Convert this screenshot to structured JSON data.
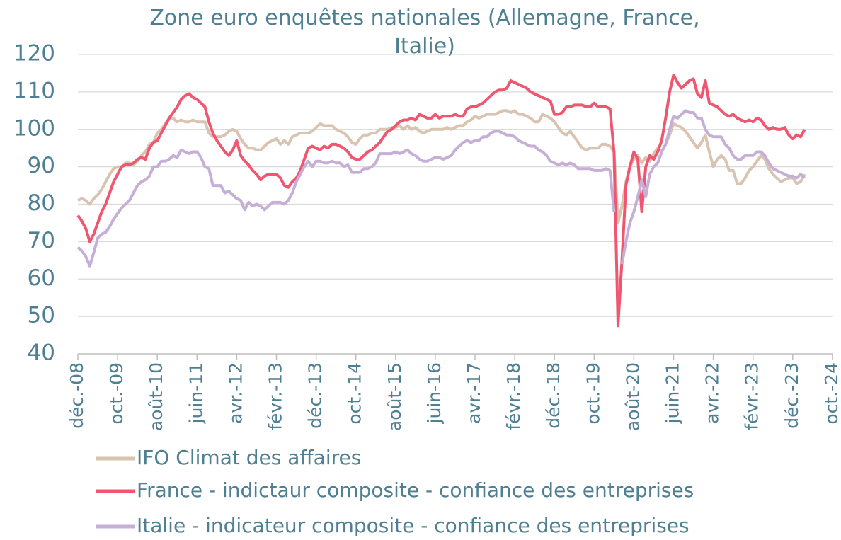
{
  "chart_data": {
    "type": "line",
    "title": "Zone euro enquêtes nationales (Allemagne, France, Italie)",
    "categories": [
      "déc.-08",
      null,
      null,
      null,
      null,
      null,
      null,
      null,
      null,
      null,
      "oct.-09",
      null,
      null,
      null,
      null,
      null,
      null,
      null,
      null,
      null,
      "août-10",
      null,
      null,
      null,
      null,
      null,
      null,
      null,
      null,
      null,
      "juin-11",
      null,
      null,
      null,
      null,
      null,
      null,
      null,
      null,
      null,
      "avr.-12",
      null,
      null,
      null,
      null,
      null,
      null,
      null,
      null,
      null,
      "févr.-13",
      null,
      null,
      null,
      null,
      null,
      null,
      null,
      null,
      null,
      "déc.-13",
      null,
      null,
      null,
      null,
      null,
      null,
      null,
      null,
      null,
      "oct.-14",
      null,
      null,
      null,
      null,
      null,
      null,
      null,
      null,
      null,
      "août-15",
      null,
      null,
      null,
      null,
      null,
      null,
      null,
      null,
      null,
      "juin-16",
      null,
      null,
      null,
      null,
      null,
      null,
      null,
      null,
      null,
      "avr.-17",
      null,
      null,
      null,
      null,
      null,
      null,
      null,
      null,
      null,
      "févr.-18",
      null,
      null,
      null,
      null,
      null,
      null,
      null,
      null,
      null,
      "déc.-18",
      null,
      null,
      null,
      null,
      null,
      null,
      null,
      null,
      null,
      "oct.-19",
      null,
      null,
      null,
      null,
      null,
      null,
      null,
      null,
      null,
      "août-20",
      null,
      null,
      null,
      null,
      null,
      null,
      null,
      null,
      null,
      "juin-21",
      null,
      null,
      null,
      null,
      null,
      null,
      null,
      null,
      null,
      "avr.-22",
      null,
      null,
      null,
      null,
      null,
      null,
      null,
      null,
      null,
      "févr.-23",
      null,
      null,
      null,
      null,
      null,
      null,
      null,
      null,
      null,
      "déc.-23",
      null,
      null,
      null,
      null,
      null,
      null,
      null,
      null,
      null,
      "oct.-24"
    ],
    "series": [
      {
        "name": "IFO Climat des affaires",
        "color": "#d9c3b1",
        "values": [
          81,
          81.5,
          81,
          80,
          81.5,
          82.5,
          84,
          86,
          88,
          89.5,
          90,
          90,
          91,
          91,
          90.5,
          91.5,
          93,
          94,
          96,
          96.5,
          99,
          100,
          101.5,
          103,
          103,
          102,
          102.5,
          102,
          102,
          102.5,
          102,
          102,
          102,
          99,
          98,
          98,
          98,
          98.5,
          99.5,
          100,
          99.5,
          97.5,
          96,
          95,
          95,
          94.5,
          94.5,
          95.5,
          96.5,
          97,
          97.5,
          96,
          97,
          96,
          98,
          98.5,
          99,
          99,
          99,
          99.5,
          100.5,
          101.5,
          101,
          101,
          101,
          100,
          99.5,
          99,
          98,
          96.5,
          96,
          97.5,
          98.5,
          98.5,
          99,
          99,
          100,
          100,
          100,
          100.5,
          100.5,
          101,
          100,
          101,
          100,
          100.5,
          99.5,
          99,
          99.5,
          100,
          100,
          100,
          100,
          100.5,
          100,
          100.5,
          101,
          101,
          102,
          102.5,
          103.5,
          103,
          103.5,
          104,
          104,
          104,
          104.5,
          105,
          105,
          104.5,
          105,
          104,
          104,
          103.5,
          103,
          102,
          102,
          104,
          103.5,
          103,
          102,
          100.5,
          99,
          98.5,
          99.5,
          98,
          96.5,
          95,
          94.5,
          95,
          95,
          95,
          96,
          96,
          95.5,
          94,
          75,
          79.5,
          86,
          90,
          92,
          93,
          91,
          92.5,
          91.5,
          93.5,
          95,
          94,
          96,
          98.5,
          101.5,
          101,
          100.5,
          99.5,
          98,
          96.5,
          95,
          96.5,
          98.5,
          94,
          90,
          92,
          93,
          92,
          89,
          89,
          85.5,
          85.5,
          87,
          89,
          90,
          91.5,
          93,
          92,
          89.5,
          88,
          87,
          86,
          86.5,
          87,
          87,
          85.5,
          86,
          88,
          null,
          null,
          null,
          null,
          null,
          null,
          null
        ]
      },
      {
        "name": "France - indictaur composite - confiance des entreprises",
        "color": "#f0566f",
        "values": [
          77,
          75.5,
          73.5,
          70,
          72,
          75,
          78,
          80,
          83,
          86,
          88,
          90,
          90.5,
          90.5,
          91,
          92,
          92.5,
          92,
          95,
          96.5,
          97,
          99,
          101,
          103,
          104.5,
          106,
          108,
          109,
          109.5,
          108.5,
          108,
          107,
          106,
          102,
          99,
          97,
          95.5,
          94,
          93,
          94.5,
          97,
          93,
          91.5,
          90.5,
          89,
          88,
          86.5,
          87.5,
          88,
          88,
          88,
          87,
          85,
          84.5,
          86,
          87,
          89,
          92,
          95,
          95.5,
          95,
          94.5,
          95.5,
          95,
          96,
          96,
          95.5,
          95,
          94,
          92.5,
          92,
          92,
          93,
          94,
          94.5,
          95.5,
          96.5,
          98,
          99.5,
          100,
          101,
          102,
          102.5,
          102.5,
          103,
          102.5,
          104,
          103.5,
          103,
          103,
          104,
          103,
          103.5,
          103.5,
          103.5,
          104,
          103.5,
          103.5,
          105.5,
          106,
          106,
          106.5,
          107,
          108,
          109,
          110,
          110.5,
          110.5,
          111,
          113,
          112.5,
          112,
          111.5,
          111,
          110,
          109.5,
          109,
          108.5,
          108,
          107.5,
          104,
          104,
          104.5,
          106,
          106,
          106.5,
          106.5,
          106.5,
          106,
          106,
          107,
          106,
          106,
          106,
          105.5,
          94,
          47.5,
          65,
          85,
          90,
          94,
          92,
          78,
          90,
          93,
          92,
          94,
          97,
          103,
          110,
          114.5,
          112.5,
          111,
          112,
          113,
          113.5,
          109.5,
          108.5,
          113,
          107,
          106.5,
          106,
          105,
          104,
          103.5,
          104,
          103,
          102.5,
          102,
          102.5,
          102,
          103,
          102.5,
          101,
          100,
          100.5,
          100,
          100,
          100.5,
          98.5,
          97.5,
          98.5,
          98,
          100,
          null,
          null,
          null,
          null,
          null,
          null,
          null
        ]
      },
      {
        "name": "Italie - indicateur composite - confiance des entreprises",
        "color": "#c6afd7",
        "values": [
          68.5,
          67.5,
          66,
          63.5,
          67,
          71,
          72,
          72.5,
          74,
          76,
          77.5,
          79,
          80,
          81,
          83,
          85,
          86,
          86.5,
          87.5,
          90,
          90,
          91.5,
          91.5,
          92,
          93,
          92.5,
          94.5,
          94,
          93.5,
          94,
          94,
          92.5,
          90,
          89.5,
          85,
          85,
          85,
          83,
          83.5,
          82.5,
          81.5,
          81,
          78.5,
          80.5,
          79.5,
          80,
          79.5,
          78.5,
          79.5,
          80.5,
          80.5,
          80.5,
          80,
          81,
          83,
          86,
          88,
          90,
          91.5,
          90,
          91.5,
          91.5,
          91,
          91,
          91.5,
          91,
          91,
          90,
          90.5,
          88.5,
          88.5,
          88.5,
          89.5,
          89.5,
          90,
          91,
          93.5,
          93.5,
          93.5,
          93.5,
          94,
          93.5,
          94,
          94.5,
          93.5,
          93,
          92,
          91.5,
          91.5,
          92,
          92.5,
          92.5,
          92,
          92.5,
          93,
          94.5,
          95.5,
          96.5,
          97,
          96.5,
          97,
          97,
          98,
          98,
          99,
          99.5,
          99.5,
          99,
          98.5,
          98.5,
          98,
          97,
          96.5,
          96,
          95.5,
          95.5,
          94.5,
          94,
          93,
          91.5,
          91,
          90.5,
          91,
          90.5,
          91,
          90.5,
          89.5,
          89.5,
          89.5,
          89.5,
          89,
          89,
          89,
          89.5,
          89,
          78,
          null,
          64,
          70,
          75,
          78,
          82,
          86.5,
          82,
          88,
          90,
          91,
          94,
          96,
          100,
          103.5,
          103,
          104,
          105,
          104.5,
          104.5,
          103,
          103,
          100,
          98.5,
          98,
          98,
          98,
          96,
          95,
          93,
          92,
          92,
          93,
          93,
          93,
          94,
          94,
          93,
          91,
          89.5,
          89,
          88.5,
          88,
          87.5,
          87.5,
          87,
          88,
          87,
          null,
          null,
          null,
          null,
          null,
          null,
          null
        ]
      }
    ],
    "ylim": [
      40,
      120
    ],
    "yticks": [
      40,
      50,
      60,
      70,
      80,
      90,
      100,
      110,
      120
    ],
    "grid": true,
    "legend": "bottom"
  }
}
